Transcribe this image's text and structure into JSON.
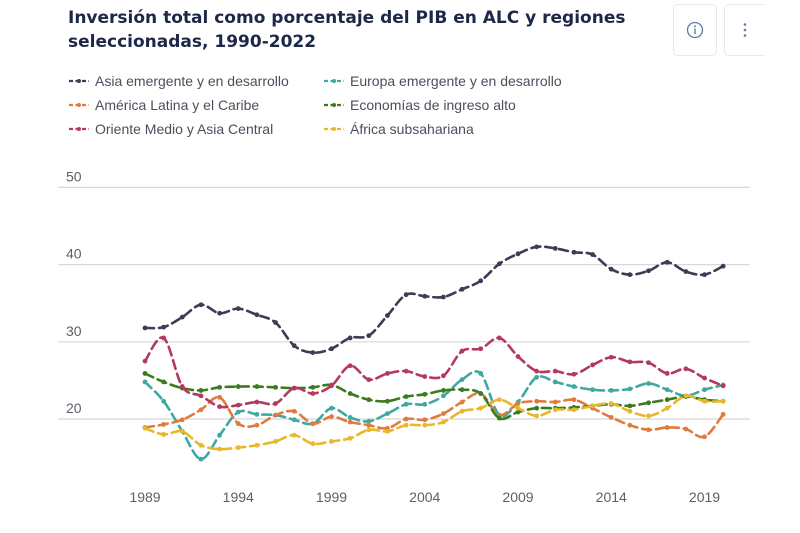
{
  "header": {
    "title_line1": "Inversión total como porcentaje del PIB en ALC y regiones",
    "title_line2": "seleccionadas, 1990-2022",
    "info_icon": "info-circle-icon",
    "more_icon": "vertical-ellipsis-icon"
  },
  "chart_data": {
    "type": "line",
    "title": "Inversión total como porcentaje del PIB en ALC y regiones seleccionadas, 1990-2022",
    "xlabel": "",
    "ylabel": "",
    "ylim": [
      10,
      50
    ],
    "yticks": [
      20,
      30,
      40,
      50
    ],
    "ytick_labels": [
      "20",
      "30",
      "40",
      "50"
    ],
    "xticks": [
      1989,
      1994,
      1999,
      2004,
      2009,
      2014,
      2019
    ],
    "xtick_labels": [
      "1989",
      "1994",
      "1999",
      "2004",
      "2009",
      "2014",
      "2019"
    ],
    "xlim": [
      1989,
      2020
    ],
    "grid": "horizontal",
    "legend_position": "top",
    "x": [
      1989,
      1990,
      1991,
      1992,
      1993,
      1994,
      1995,
      1996,
      1997,
      1998,
      1999,
      2000,
      2001,
      2002,
      2003,
      2004,
      2005,
      2006,
      2007,
      2008,
      2009,
      2010,
      2011,
      2012,
      2013,
      2014,
      2015,
      2016,
      2017,
      2018,
      2019,
      2020
    ],
    "series": [
      {
        "name": "Asia emergente y en desarrollo",
        "color": "#3b3d54",
        "values": [
          31.8,
          31.9,
          33.2,
          34.8,
          33.7,
          34.3,
          33.5,
          32.5,
          29.5,
          28.6,
          29.1,
          30.5,
          30.8,
          33.4,
          36.1,
          35.9,
          35.8,
          36.8,
          37.9,
          40.1,
          41.4,
          42.3,
          42.1,
          41.6,
          41.3,
          39.4,
          38.7,
          39.2,
          40.3,
          39.1,
          38.7,
          39.8
        ]
      },
      {
        "name": "Europa emergente y en desarrollo",
        "color": "#3fa8a0",
        "values": [
          24.8,
          22.3,
          18.4,
          14.8,
          17.9,
          20.9,
          20.6,
          20.5,
          19.9,
          19.4,
          21.4,
          20.2,
          19.7,
          20.7,
          21.9,
          21.9,
          23.0,
          25.1,
          25.9,
          20.5,
          22.2,
          25.4,
          24.8,
          24.2,
          23.8,
          23.7,
          23.9,
          24.6,
          23.8,
          23.0,
          23.8,
          24.4
        ]
      },
      {
        "name": "América Latina y el Caribe",
        "color": "#e07a3f",
        "values": [
          18.9,
          19.3,
          19.9,
          21.2,
          22.8,
          19.4,
          19.2,
          20.5,
          21.0,
          19.4,
          20.3,
          19.6,
          19.2,
          18.8,
          20.0,
          19.9,
          20.7,
          22.2,
          23.3,
          20.5,
          22.0,
          22.3,
          22.2,
          22.5,
          21.4,
          20.2,
          19.2,
          18.6,
          18.9,
          18.7,
          17.7,
          20.6
        ]
      },
      {
        "name": "Economías de ingreso alto",
        "color": "#3c7a1e",
        "values": [
          25.9,
          24.8,
          24.0,
          23.7,
          24.1,
          24.2,
          24.2,
          24.1,
          24.0,
          24.1,
          24.4,
          23.3,
          22.5,
          22.3,
          22.9,
          23.2,
          23.7,
          23.8,
          23.3,
          20.1,
          20.9,
          21.4,
          21.4,
          21.5,
          21.7,
          21.9,
          21.7,
          22.1,
          22.5,
          22.9,
          22.5,
          22.3
        ]
      },
      {
        "name": "Oriente Medio y Asia Central",
        "color": "#b5395f",
        "values": [
          27.5,
          30.5,
          24.2,
          23.0,
          21.6,
          21.8,
          22.2,
          22.0,
          24.0,
          23.3,
          24.3,
          26.9,
          25.1,
          25.9,
          26.2,
          25.5,
          25.6,
          28.8,
          29.1,
          30.5,
          28.1,
          26.2,
          26.2,
          25.8,
          27.0,
          28.0,
          27.4,
          27.3,
          25.9,
          26.5,
          25.3,
          24.3
        ]
      },
      {
        "name": "África subsahariana",
        "color": "#e8b82a",
        "values": [
          18.8,
          18.0,
          18.4,
          16.6,
          16.1,
          16.3,
          16.6,
          17.1,
          17.9,
          16.8,
          17.1,
          17.5,
          18.6,
          18.4,
          19.2,
          19.2,
          19.6,
          21.0,
          21.4,
          22.5,
          21.4,
          20.4,
          21.2,
          21.2,
          21.7,
          22.0,
          21.0,
          20.4,
          21.4,
          23.0,
          22.3,
          22.3
        ]
      }
    ]
  },
  "legend": [
    {
      "label": "Asia emergente y en desarrollo",
      "color": "#3b3d54"
    },
    {
      "label": "Europa emergente y en desarrollo",
      "color": "#3fa8a0"
    },
    {
      "label": "América Latina y el Caribe",
      "color": "#e07a3f"
    },
    {
      "label": "Economías de ingreso alto",
      "color": "#3c7a1e"
    },
    {
      "label": "Oriente Medio y Asia Central",
      "color": "#b5395f"
    },
    {
      "label": "África subsahariana",
      "color": "#e8b82a"
    }
  ]
}
